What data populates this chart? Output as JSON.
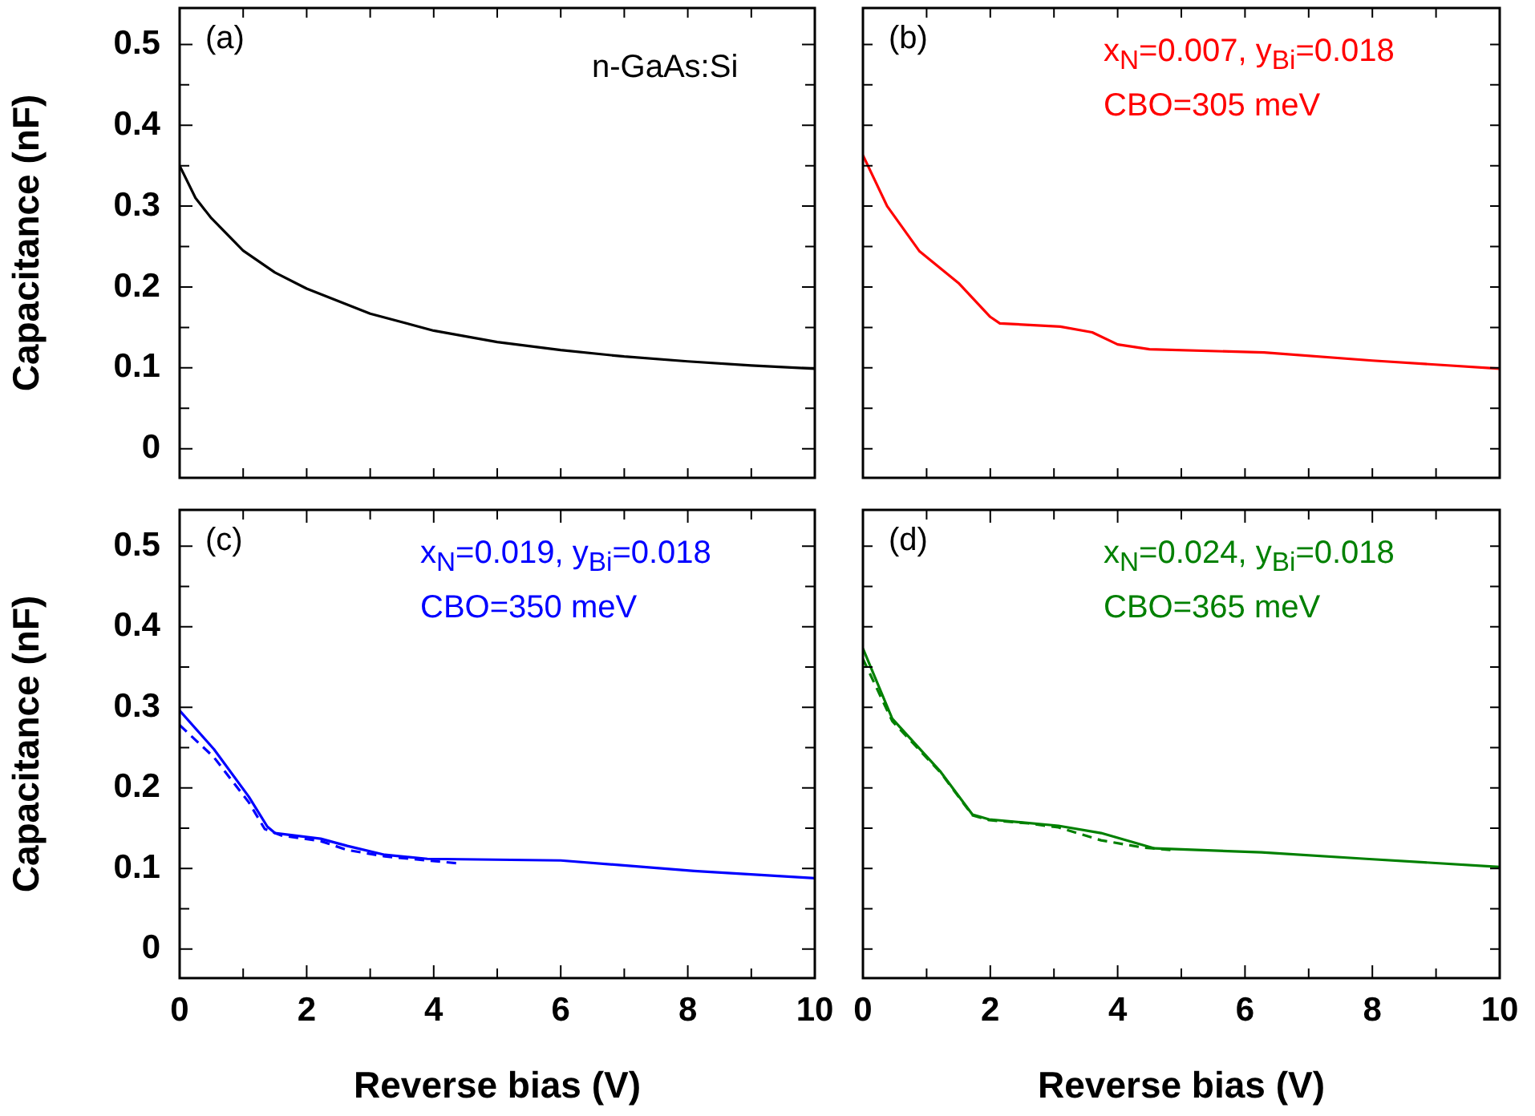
{
  "chart_data": [
    {
      "type": "line",
      "ylabel": "Capacitance (nF)",
      "xlim": [
        0,
        10
      ],
      "ylim": [
        -0.036,
        0.545
      ],
      "xticks": [
        0,
        {
          "value": 1,
          "label": null
        },
        {
          "value": 2,
          "label": null
        },
        {
          "value": 3,
          "label": null
        },
        {
          "value": 4,
          "label": null
        },
        {
          "value": 5,
          "label": null
        },
        {
          "value": 6,
          "label": null
        },
        {
          "value": 7,
          "label": null
        },
        {
          "value": 8,
          "label": null
        },
        {
          "value": 9,
          "label": null
        },
        {
          "value": 10,
          "label": null
        }
      ],
      "yticks": [
        0,
        {
          "value": 0.05,
          "label": null
        },
        0.1,
        {
          "value": 0.15,
          "label": null
        },
        0.2,
        {
          "value": 0.25,
          "label": null
        },
        0.3,
        {
          "value": 0.35,
          "label": null
        },
        0.4,
        {
          "value": 0.45,
          "label": null
        },
        0.5
      ],
      "tick_labels": "y",
      "annotations": [
        "(a)",
        "n-GaAs:Si"
      ],
      "series": [
        {
          "color": "#000000",
          "line_style": "solid",
          "x": [
            0,
            0.25,
            0.5,
            1,
            1.5,
            2,
            3,
            4,
            5,
            6,
            7,
            8,
            9,
            10
          ],
          "values": [
            0.35,
            0.31,
            0.285,
            0.245,
            0.218,
            0.198,
            0.167,
            0.146,
            0.132,
            0.122,
            0.114,
            0.108,
            0.103,
            0.099
          ]
        }
      ]
    },
    {
      "type": "line",
      "xlim": [
        0,
        10
      ],
      "ylim": [
        -0.036,
        0.545
      ],
      "xticks": [
        {
          "value": 0,
          "label": null
        },
        {
          "value": 1,
          "label": null
        },
        {
          "value": 2,
          "label": null
        },
        {
          "value": 3,
          "label": null
        },
        {
          "value": 4,
          "label": null
        },
        {
          "value": 5,
          "label": null
        },
        {
          "value": 6,
          "label": null
        },
        {
          "value": 7,
          "label": null
        },
        {
          "value": 8,
          "label": null
        },
        {
          "value": 9,
          "label": null
        },
        {
          "value": 10,
          "label": null
        }
      ],
      "yticks": [
        {
          "value": 0,
          "label": null
        },
        {
          "value": 0.05,
          "label": null
        },
        {
          "value": 0.1,
          "label": null
        },
        {
          "value": 0.15,
          "label": null
        },
        {
          "value": 0.2,
          "label": null
        },
        {
          "value": 0.25,
          "label": null
        },
        {
          "value": 0.3,
          "label": null
        },
        {
          "value": 0.35,
          "label": null
        },
        {
          "value": 0.4,
          "label": null
        },
        {
          "value": 0.45,
          "label": null
        },
        {
          "value": 0.5,
          "label": null
        }
      ],
      "tick_labels": false,
      "annotations": [
        "(b)",
        "x$_{N}$=0.007, y$_{Bi}$=0.018",
        "CBO=305 meV"
      ],
      "series": [
        {
          "color": "#ff0000",
          "line_style": "solid",
          "x": [
            0,
            0.38,
            0.89,
            1.5,
            2.0,
            2.15,
            3.1,
            3.6,
            4.0,
            4.5,
            6.3,
            8,
            10
          ],
          "values": [
            0.363,
            0.3,
            0.244,
            0.205,
            0.163,
            0.155,
            0.151,
            0.144,
            0.129,
            0.123,
            0.119,
            0.109,
            0.099
          ]
        }
      ]
    },
    {
      "type": "line",
      "xlabel": "Reverse bias (V)",
      "ylabel": "Capacitance (nF)",
      "xlim": [
        0,
        10
      ],
      "ylim": [
        -0.036,
        0.545
      ],
      "xticks": [
        0,
        {
          "value": 1,
          "label": null
        },
        2,
        {
          "value": 3,
          "label": null
        },
        4,
        {
          "value": 5,
          "label": null
        },
        6,
        {
          "value": 7,
          "label": null
        },
        8,
        {
          "value": 9,
          "label": null
        },
        10
      ],
      "yticks": [
        0,
        {
          "value": 0.05,
          "label": null
        },
        0.1,
        {
          "value": 0.15,
          "label": null
        },
        0.2,
        {
          "value": 0.25,
          "label": null
        },
        0.3,
        {
          "value": 0.35,
          "label": null
        },
        0.4,
        {
          "value": 0.45,
          "label": null
        },
        0.5
      ],
      "annotations": [
        "(c)",
        "x$_{N}$=0.019, y$_{Bi}$=0.018",
        "CBO=350 meV"
      ],
      "series": [
        {
          "color": "#0000ff",
          "line_style": "solid",
          "x": [
            0,
            0.54,
            1.09,
            1.38,
            1.5,
            2.22,
            2.64,
            3.23,
            3.9,
            6.0,
            8.1,
            10
          ],
          "values": [
            0.296,
            0.248,
            0.189,
            0.152,
            0.144,
            0.137,
            0.128,
            0.117,
            0.112,
            0.11,
            0.097,
            0.088
          ]
        },
        {
          "color": "#0000ff",
          "line_style": "dashed",
          "x": [
            0,
            0.54,
            1.09,
            1.34,
            1.6,
            2.22,
            2.64,
            3.23,
            3.9,
            4.44
          ],
          "values": [
            0.278,
            0.238,
            0.182,
            0.149,
            0.141,
            0.134,
            0.123,
            0.115,
            0.11,
            0.106
          ]
        }
      ]
    },
    {
      "type": "line",
      "xlabel": "Reverse bias (V)",
      "xlim": [
        0,
        10
      ],
      "ylim": [
        -0.036,
        0.545
      ],
      "xticks": [
        0,
        {
          "value": 1,
          "label": null
        },
        2,
        {
          "value": 3,
          "label": null
        },
        4,
        {
          "value": 5,
          "label": null
        },
        6,
        {
          "value": 7,
          "label": null
        },
        8,
        {
          "value": 9,
          "label": null
        },
        10
      ],
      "yticks": [
        {
          "value": 0,
          "label": null
        },
        {
          "value": 0.05,
          "label": null
        },
        {
          "value": 0.1,
          "label": null
        },
        {
          "value": 0.15,
          "label": null
        },
        {
          "value": 0.2,
          "label": null
        },
        {
          "value": 0.25,
          "label": null
        },
        {
          "value": 0.3,
          "label": null
        },
        {
          "value": 0.35,
          "label": null
        },
        {
          "value": 0.4,
          "label": null
        },
        {
          "value": 0.45,
          "label": null
        },
        {
          "value": 0.5,
          "label": null
        }
      ],
      "tick_labels": "x",
      "annotations": [
        "(d)",
        "x$_{N}$=0.024, y$_{Bi}$=0.018",
        "CBO=365 meV"
      ],
      "series": [
        {
          "color": "#008000",
          "line_style": "solid",
          "x": [
            0,
            0.46,
            1.22,
            1.72,
            1.98,
            3.07,
            3.74,
            4.58,
            6.26,
            7.9,
            10
          ],
          "values": [
            0.373,
            0.286,
            0.22,
            0.167,
            0.161,
            0.153,
            0.144,
            0.125,
            0.12,
            0.112,
            0.102
          ]
        },
        {
          "color": "#008000",
          "line_style": "dashed",
          "x": [
            0,
            0.46,
            1.22,
            1.72,
            1.98,
            2.6,
            3.07,
            3.74,
            4.4,
            4.83
          ],
          "values": [
            0.36,
            0.283,
            0.219,
            0.166,
            0.16,
            0.156,
            0.151,
            0.135,
            0.126,
            0.123
          ]
        }
      ]
    }
  ]
}
